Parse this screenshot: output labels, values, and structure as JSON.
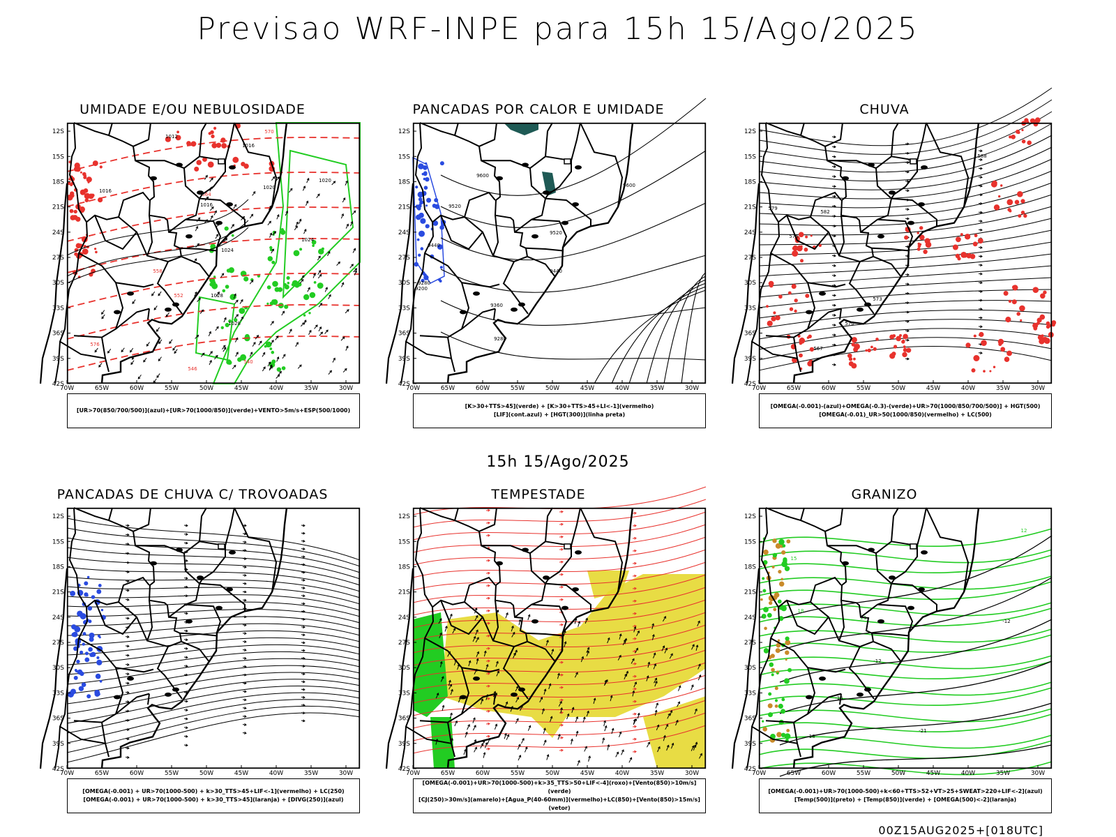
{
  "header": {
    "title": "Previsao WRF-INPE  para 15h 15/Ago/2025"
  },
  "mid_stamp": "15h 15/Ago/2025",
  "run_stamp": "00Z15AUG2025+[018UTC]",
  "axes": {
    "lat_labels": [
      "12S",
      "15S",
      "18S",
      "21S",
      "24S",
      "27S",
      "30S",
      "33S",
      "36S",
      "39S",
      "42S"
    ],
    "lon_labels": [
      "70W",
      "65W",
      "60W",
      "55W",
      "50W",
      "45W",
      "40W",
      "35W",
      "30W"
    ]
  },
  "panels": [
    {
      "title": "UMIDADE E/OU NEBULOSIDADE",
      "legend": [
        "[UR>70(850/700/500)](azul)+[UR>70(1000/850)](verde)+VENTO>5m/s+ESP(500/1000)"
      ],
      "labels": [
        "1012",
        "1016",
        "1016",
        "1016",
        "1020",
        "1020",
        "1024",
        "1024",
        "1028",
        "1028",
        "576",
        "570",
        "564",
        "558",
        "552",
        "546",
        "540"
      ]
    },
    {
      "title": "PANCADAS POR CALOR E UMIDADE",
      "legend": [
        "[K>30+TTS>45](verde) + [K>30+TTS>45+LI<-1](vermelho)",
        "[LIF](cont.azul) + [HGT(300)](linha preta)"
      ],
      "labels": [
        "9600",
        "9600",
        "9520",
        "9520",
        "9440",
        "9440",
        "9360",
        "9280",
        "9280",
        "9200"
      ]
    },
    {
      "title": "CHUVA",
      "legend": [
        "[OMEGA(-0.001)-(azul)+OMEGA(-0.3)-(verde)+UR>70(1000/850/700/500)] + HGT(500)",
        "[OMEGA(-0.01)_UR>50(1000/850)(vermelho) + LC(500)"
      ],
      "labels": [
        "588",
        "585",
        "582",
        "579",
        "576",
        "573",
        "570",
        "567"
      ]
    },
    {
      "title": "PANCADAS DE CHUVA C/ TROVOADAS",
      "legend": [
        "[OMEGA(-0.001) + UR>70(1000-500) + k>30_TTS>45+LIF<-1](vermelho) + LC(250)",
        "[OMEGA(-0.001) + UR>70(1000-500) + k>30_TTS>45](laranja) + [DIVG(250)](azul)"
      ],
      "labels": []
    },
    {
      "title": "TEMPESTADE",
      "legend": [
        "[OMEGA(-0.001)+UR>70(1000-500)+k>35_TTS>50+LIF<-4](roxo)+[Vento(850)>10m/s](verde)",
        "[CJ(250)>30m/s](amarelo)+[Agua_P(40-60mm)](vermelho)+LC(850)+[Vento(850)>15m/s](vetor)"
      ],
      "labels": []
    },
    {
      "title": "GRANIZO",
      "legend": [
        "[OMEGA(-0.001)+UR>70(1000-500)+k<60+TTS>52+VT>25+SWEAT>220+LIF<-2](azul)",
        "[Temp(500)](preto) + [Temp(850)](verde) + [OMEGA(500)<-2](laranja)"
      ],
      "labels": [
        "12",
        "15",
        "18",
        "21",
        "-12",
        "-12",
        "-15",
        "-18",
        "-21"
      ]
    }
  ],
  "colors": {
    "red": "#e8322d",
    "green": "#22cc22",
    "blue": "#2a4be0",
    "yellow": "#e6d830",
    "teal": "#1f5a55",
    "orange": "#c98a2a"
  }
}
